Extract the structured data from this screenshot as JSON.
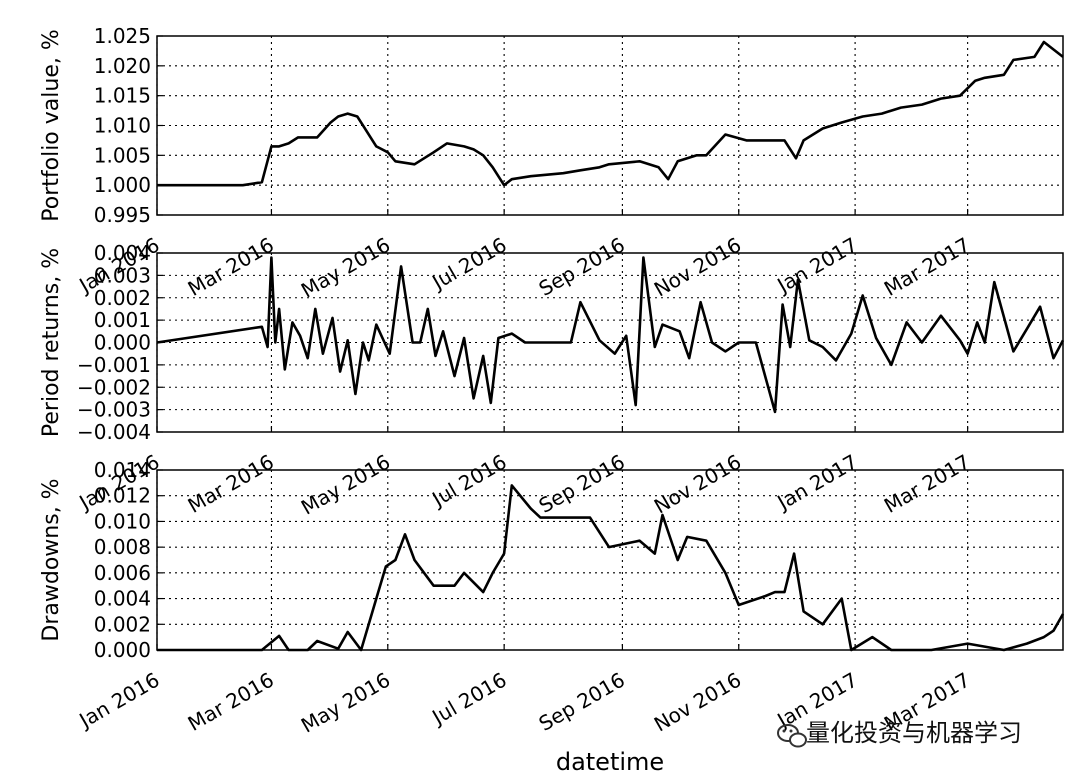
{
  "watermark": {
    "text": "量化投资与机器学习",
    "icon": "wechat-icon"
  },
  "chart_data": {
    "type": "line",
    "xlabel": "datetime",
    "x_ticks": [
      "Jan 2016",
      "Mar 2016",
      "May 2016",
      "Jul 2016",
      "Sep 2016",
      "Nov 2016",
      "Jan 2017",
      "Mar 2017"
    ],
    "x_range": [
      "2016-01-01",
      "2017-04-20"
    ],
    "grid": true,
    "panels": [
      {
        "ylabel": "Portfolio value, %",
        "ylim": [
          0.995,
          1.025
        ],
        "yticks": [
          "0.995",
          "1.000",
          "1.005",
          "1.010",
          "1.015",
          "1.020",
          "1.025"
        ],
        "series": [
          {
            "x": [
              "2016-01-01",
              "2016-02-15",
              "2016-02-25",
              "2016-03-01",
              "2016-03-05",
              "2016-03-10",
              "2016-03-15",
              "2016-03-25",
              "2016-04-01",
              "2016-04-05",
              "2016-04-10",
              "2016-04-15",
              "2016-04-25",
              "2016-05-01",
              "2016-05-05",
              "2016-05-15",
              "2016-05-25",
              "2016-06-01",
              "2016-06-10",
              "2016-06-15",
              "2016-06-20",
              "2016-06-25",
              "2016-07-01",
              "2016-07-05",
              "2016-07-15",
              "2016-08-01",
              "2016-08-10",
              "2016-08-20",
              "2016-08-25",
              "2016-09-10",
              "2016-09-15",
              "2016-09-20",
              "2016-09-25",
              "2016-09-30",
              "2016-10-10",
              "2016-10-15",
              "2016-10-25",
              "2016-11-05",
              "2016-11-15",
              "2016-11-25",
              "2016-12-01",
              "2016-12-05",
              "2016-12-15",
              "2016-12-25",
              "2017-01-05",
              "2017-01-15",
              "2017-01-25",
              "2017-02-05",
              "2017-02-15",
              "2017-02-25",
              "2017-03-05",
              "2017-03-10",
              "2017-03-20",
              "2017-03-25",
              "2017-04-05",
              "2017-04-10",
              "2017-04-20"
            ],
            "y": [
              1.0,
              1.0,
              1.0005,
              1.0065,
              1.0065,
              1.007,
              1.008,
              1.008,
              1.0105,
              1.0115,
              1.012,
              1.0115,
              1.0065,
              1.0055,
              1.004,
              1.0035,
              1.0055,
              1.007,
              1.0065,
              1.006,
              1.005,
              1.003,
              1.0,
              1.001,
              1.0015,
              1.002,
              1.0025,
              1.003,
              1.0035,
              1.004,
              1.0035,
              1.003,
              1.001,
              1.004,
              1.005,
              1.005,
              1.0085,
              1.0075,
              1.0075,
              1.0075,
              1.0045,
              1.0075,
              1.0095,
              1.0105,
              1.0115,
              1.012,
              1.013,
              1.0135,
              1.0145,
              1.015,
              1.0175,
              1.018,
              1.0185,
              1.021,
              1.0215,
              1.024,
              1.0215
            ]
          }
        ]
      },
      {
        "ylabel": "Period returns, %",
        "ylim": [
          -0.004,
          0.004
        ],
        "yticks": [
          "−0.004",
          "−0.003",
          "−0.002",
          "−0.001",
          "0.000",
          "0.001",
          "0.002",
          "0.003",
          "0.004"
        ],
        "series": [
          {
            "x": [
              "2016-01-01",
              "2016-02-25",
              "2016-02-28",
              "2016-03-01",
              "2016-03-03",
              "2016-03-05",
              "2016-03-08",
              "2016-03-12",
              "2016-03-16",
              "2016-03-20",
              "2016-03-24",
              "2016-03-28",
              "2016-04-02",
              "2016-04-06",
              "2016-04-10",
              "2016-04-14",
              "2016-04-18",
              "2016-04-21",
              "2016-04-25",
              "2016-05-02",
              "2016-05-08",
              "2016-05-14",
              "2016-05-18",
              "2016-05-22",
              "2016-05-26",
              "2016-05-30",
              "2016-06-05",
              "2016-06-10",
              "2016-06-15",
              "2016-06-20",
              "2016-06-24",
              "2016-06-28",
              "2016-07-05",
              "2016-07-12",
              "2016-07-20",
              "2016-08-05",
              "2016-08-10",
              "2016-08-20",
              "2016-08-28",
              "2016-09-03",
              "2016-09-08",
              "2016-09-12",
              "2016-09-18",
              "2016-09-22",
              "2016-10-01",
              "2016-10-06",
              "2016-10-12",
              "2016-10-18",
              "2016-10-25",
              "2016-11-01",
              "2016-11-10",
              "2016-11-20",
              "2016-11-24",
              "2016-11-28",
              "2016-12-02",
              "2016-12-08",
              "2016-12-15",
              "2016-12-22",
              "2016-12-30",
              "2017-01-05",
              "2017-01-12",
              "2017-01-20",
              "2017-01-28",
              "2017-02-05",
              "2017-02-15",
              "2017-02-25",
              "2017-03-01",
              "2017-03-06",
              "2017-03-10",
              "2017-03-15",
              "2017-03-25",
              "2017-04-01",
              "2017-04-08",
              "2017-04-15",
              "2017-04-20"
            ],
            "y": [
              0.0,
              0.0007,
              -0.0002,
              0.0038,
              0.0,
              0.0015,
              -0.0012,
              0.0009,
              0.0003,
              -0.0007,
              0.0015,
              -0.0005,
              0.0011,
              -0.0013,
              0.0001,
              -0.0023,
              0.0,
              -0.0008,
              0.0008,
              -0.0005,
              0.0034,
              0.0,
              0.0,
              0.0015,
              -0.0006,
              0.0005,
              -0.0015,
              0.0002,
              -0.0025,
              -0.0006,
              -0.0027,
              0.0002,
              0.0004,
              0.0,
              0.0,
              0.0,
              0.0018,
              0.0001,
              -0.0005,
              0.0003,
              -0.0028,
              0.0038,
              -0.0002,
              0.0008,
              0.0005,
              -0.0007,
              0.0018,
              0.0,
              -0.0004,
              0.0,
              0.0,
              -0.0031,
              0.0017,
              -0.0002,
              0.0028,
              0.0001,
              -0.0002,
              -0.0008,
              0.0004,
              0.0021,
              0.0002,
              -0.001,
              0.0009,
              0.0,
              0.0012,
              0.0001,
              -0.0005,
              0.0009,
              0.0,
              0.0027,
              -0.0004,
              0.0006,
              0.0016,
              -0.0007,
              0.0001
            ]
          }
        ]
      },
      {
        "ylabel": "Drawdowns, %",
        "ylim": [
          0.0,
          0.014
        ],
        "yticks": [
          "0.000",
          "0.002",
          "0.004",
          "0.006",
          "0.008",
          "0.010",
          "0.012",
          "0.014"
        ],
        "series": [
          {
            "x": [
              "2016-01-01",
              "2016-02-25",
              "2016-03-05",
              "2016-03-10",
              "2016-03-20",
              "2016-03-25",
              "2016-04-05",
              "2016-04-10",
              "2016-04-17",
              "2016-04-25",
              "2016-04-30",
              "2016-05-05",
              "2016-05-10",
              "2016-05-15",
              "2016-05-25",
              "2016-06-05",
              "2016-06-10",
              "2016-06-20",
              "2016-06-25",
              "2016-07-01",
              "2016-07-05",
              "2016-07-15",
              "2016-07-20",
              "2016-08-15",
              "2016-08-25",
              "2016-09-10",
              "2016-09-18",
              "2016-09-22",
              "2016-09-30",
              "2016-10-05",
              "2016-10-15",
              "2016-10-25",
              "2016-11-01",
              "2016-11-15",
              "2016-11-20",
              "2016-11-25",
              "2016-11-30",
              "2016-12-05",
              "2016-12-15",
              "2016-12-25",
              "2016-12-30",
              "2017-01-10",
              "2017-01-20",
              "2017-02-10",
              "2017-03-01",
              "2017-03-20",
              "2017-04-01",
              "2017-04-10",
              "2017-04-15",
              "2017-04-20"
            ],
            "y": [
              0.0,
              0.0,
              0.0011,
              0.0,
              0.0,
              0.0007,
              0.0001,
              0.0014,
              0.0,
              0.004,
              0.0065,
              0.007,
              0.009,
              0.007,
              0.005,
              0.005,
              0.006,
              0.0045,
              0.006,
              0.0075,
              0.0128,
              0.011,
              0.0103,
              0.0103,
              0.008,
              0.0085,
              0.0075,
              0.0105,
              0.007,
              0.0088,
              0.0085,
              0.006,
              0.0035,
              0.0042,
              0.0045,
              0.0045,
              0.0075,
              0.003,
              0.002,
              0.004,
              0.0,
              0.001,
              0.0,
              0.0,
              0.0005,
              0.0,
              0.0005,
              0.001,
              0.0015,
              0.0028
            ]
          }
        ]
      }
    ]
  }
}
